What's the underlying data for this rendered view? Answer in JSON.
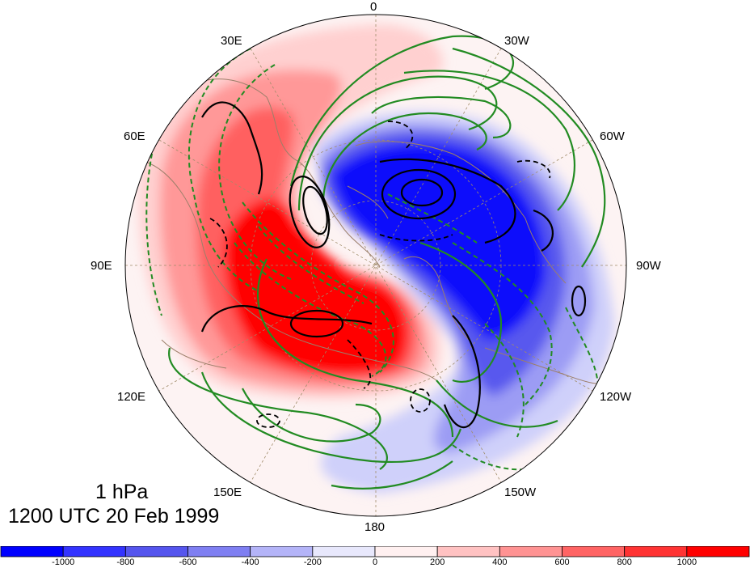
{
  "map": {
    "projection": "north polar stereographic",
    "longitude_labels": {
      "top": "0",
      "upper_left": "30E",
      "upper_right": "30W",
      "left_high": "60E",
      "right_high": "60W",
      "left": "90E",
      "right": "90W",
      "left_low": "120E",
      "right_low": "120W",
      "bottom_left": "150E",
      "bottom_right": "150W",
      "bottom": "180"
    },
    "title_level": "1 hPa",
    "title_time": "1200 UTC 20 Feb 1999",
    "colors": {
      "positive_shading": "#ff0000",
      "negative_shading": "#0000ff",
      "positive_contour": "#228b22",
      "negative_contour": "#000000",
      "coastline": "#9c7f6a",
      "graticule": "#a08c6a"
    }
  },
  "colorbar": {
    "tick_labels": [
      "-1000",
      "-800",
      "-600",
      "-400",
      "-200",
      "0",
      "200",
      "400",
      "600",
      "800",
      "1000"
    ],
    "colors": [
      "#0000ff",
      "#3333ff",
      "#5555ee",
      "#7f7ff2",
      "#b4b4f8",
      "#e8e8fc",
      "#fff0f0",
      "#ffc2c2",
      "#ff9393",
      "#ff6464",
      "#ff3333",
      "#ff0000"
    ]
  }
}
